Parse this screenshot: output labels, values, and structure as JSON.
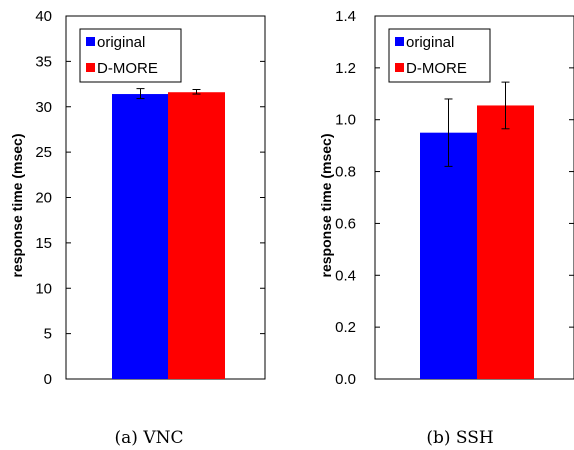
{
  "chart_data": [
    {
      "type": "bar",
      "caption": "(a) VNC",
      "ylabel": "response time (msec)",
      "ylim": [
        0,
        40
      ],
      "yticks": [
        "0",
        "5",
        "10",
        "15",
        "20",
        "25",
        "30",
        "35",
        "40"
      ],
      "ytick_values": [
        0,
        5,
        10,
        15,
        20,
        25,
        30,
        35,
        40
      ],
      "legend_position": "top-left",
      "series": [
        {
          "name": "original",
          "color": "#0000ff",
          "value": 31.4,
          "error": [
            30.9,
            32.0
          ]
        },
        {
          "name": "D-MORE",
          "color": "#ff0000",
          "value": 31.6,
          "error": [
            31.4,
            31.9
          ]
        }
      ]
    },
    {
      "type": "bar",
      "caption": "(b) SSH",
      "ylabel": "response time (msec)",
      "ylim": [
        0,
        1.4
      ],
      "yticks": [
        "0.0",
        "0.2",
        "0.4",
        "0.6",
        "0.8",
        "1.0",
        "1.2",
        "1.4"
      ],
      "ytick_values": [
        0,
        0.2,
        0.4,
        0.6,
        0.8,
        1.0,
        1.2,
        1.4
      ],
      "legend_position": "top-left",
      "series": [
        {
          "name": "original",
          "color": "#0000ff",
          "value": 0.95,
          "error": [
            0.82,
            1.08
          ]
        },
        {
          "name": "D-MORE",
          "color": "#ff0000",
          "value": 1.055,
          "error": [
            0.965,
            1.145
          ]
        }
      ]
    }
  ]
}
